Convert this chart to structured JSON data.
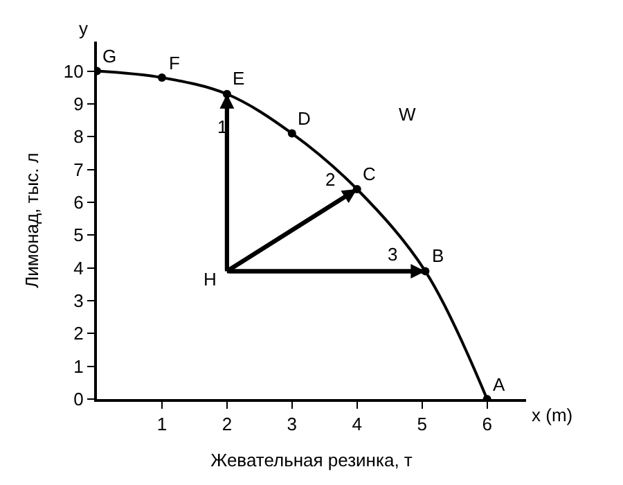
{
  "chart_data": {
    "type": "line",
    "xlabel": "Жевательная резинка, т",
    "ylabel": "Лимонад, тыс. л",
    "xlim": [
      0,
      6.6
    ],
    "ylim": [
      0,
      10.9
    ],
    "xticks": [
      1,
      2,
      3,
      4,
      5,
      6
    ],
    "yticks": [
      0,
      1,
      2,
      3,
      4,
      5,
      6,
      7,
      8,
      9,
      10
    ],
    "series": [
      {
        "color": "#000000",
        "marker": "circle",
        "x": [
          0,
          1,
          2,
          3,
          4,
          5.05,
          6
        ],
        "values": [
          10,
          9.8,
          9.3,
          8.1,
          6.4,
          3.9,
          0
        ]
      },
      {
        "color": "#000000",
        "marker": "none",
        "x": [
          2,
          2
        ],
        "values": [
          3.9,
          9.3
        ]
      },
      {
        "color": "#000000",
        "marker": "none",
        "x": [
          2,
          4
        ],
        "values": [
          3.9,
          6.4
        ]
      },
      {
        "color": "#000000",
        "marker": "none",
        "x": [
          2,
          5.05
        ],
        "values": [
          3.9,
          3.9
        ]
      }
    ],
    "annotations": [
      "y",
      "x (m)",
      {
        "text": "G",
        "x": 0,
        "y": 10
      },
      {
        "text": "F",
        "x": 1,
        "y": 9.8
      },
      {
        "text": "E",
        "x": 2,
        "y": 9.3
      },
      {
        "text": "D",
        "x": 3,
        "y": 8.1
      },
      {
        "text": "C",
        "x": 4,
        "y": 6.4
      },
      {
        "text": "B",
        "x": 5.05,
        "y": 3.9
      },
      {
        "text": "A",
        "x": 6,
        "y": 0
      },
      {
        "text": "H",
        "x": 2,
        "y": 3.9
      },
      "1",
      "2",
      "3",
      "W"
    ]
  }
}
